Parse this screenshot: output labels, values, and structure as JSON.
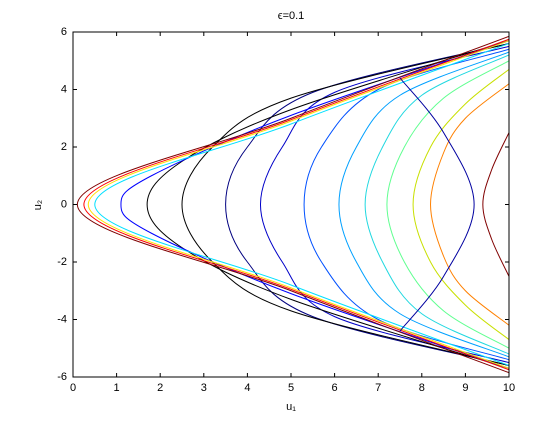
{
  "chart_data": {
    "type": "contour",
    "title": "ϵ=0.1",
    "xlabel": "u₁",
    "ylabel": "u₂",
    "xlim": [
      0,
      10
    ],
    "ylim": [
      -6,
      6
    ],
    "xticks": [
      0,
      1,
      2,
      3,
      4,
      5,
      6,
      7,
      8,
      9,
      10
    ],
    "yticks": [
      -6,
      -4,
      -2,
      0,
      2,
      4,
      6
    ],
    "series": [
      {
        "color": "#800000",
        "x": [
          10,
          9.6,
          9.4,
          9.6,
          10
        ],
        "y": [
          2.5,
          1.2,
          0,
          -1.2,
          -2.5
        ]
      },
      {
        "color": "#ff8000",
        "x": [
          10,
          9,
          8.5,
          8.2,
          8.5,
          9,
          10
        ],
        "y": [
          4.2,
          3,
          1.8,
          0,
          -1.8,
          -3,
          -4.2
        ]
      },
      {
        "color": "#c8e000",
        "x": [
          10,
          9,
          8.2,
          7.8,
          8.2,
          9,
          10
        ],
        "y": [
          4.7,
          3.5,
          2,
          0,
          -2,
          -3.5,
          -4.7
        ]
      },
      {
        "color": "#60ff90",
        "x": [
          10,
          8.5,
          7.6,
          7.2,
          7.6,
          8.5,
          10
        ],
        "y": [
          5,
          3.7,
          2,
          0,
          -2,
          -3.7,
          -5
        ]
      },
      {
        "color": "#20d8e0",
        "x": [
          10,
          8,
          7.1,
          6.7,
          7.1,
          8,
          10
        ],
        "y": [
          5.2,
          3.8,
          2,
          0,
          -2,
          -3.8,
          -5.2
        ]
      },
      {
        "color": "#00a0ff",
        "x": [
          10,
          7.5,
          6.5,
          6.1,
          6.5,
          7.5,
          10
        ],
        "y": [
          5.3,
          3.8,
          2,
          0,
          -2,
          -3.8,
          -5.3
        ]
      },
      {
        "color": "#0050ff",
        "x": [
          10,
          7,
          5.7,
          5.3,
          5.7,
          7,
          10
        ],
        "y": [
          5.4,
          4,
          2,
          0,
          -2,
          -4,
          -5.4
        ]
      },
      {
        "color": "#0000c8",
        "x": [
          10,
          6,
          4.8,
          4.3,
          4.8,
          6,
          10
        ],
        "y": [
          5.5,
          3.9,
          2,
          0,
          -2,
          -3.9,
          -5.5
        ]
      },
      {
        "color": "#000080",
        "x": [
          10,
          5.5,
          4,
          3.5,
          4,
          5.5,
          10
        ],
        "y": [
          5.6,
          3.9,
          2,
          0,
          -2,
          -3.9,
          -5.6
        ]
      },
      {
        "color": "#000000",
        "x": [
          10,
          5,
          3.2,
          2.5,
          3.2,
          5,
          10
        ],
        "y": [
          5.6,
          3.7,
          2,
          0,
          -2,
          -3.7,
          -5.6
        ]
      },
      {
        "color": "#000000",
        "x": [
          10,
          5,
          2.5,
          1.7,
          2.5,
          5,
          10
        ],
        "y": [
          5.7,
          3.3,
          1.5,
          0,
          -1.5,
          -3.3,
          -5.7
        ]
      },
      {
        "color": "#0000ff",
        "x": [
          10,
          5,
          1.8,
          1.1,
          1.8,
          5,
          10
        ],
        "y": [
          5.7,
          3.1,
          1,
          0,
          -1,
          -3.1,
          -5.7
        ]
      },
      {
        "color": "#00e0ff",
        "x": [
          10,
          5,
          0.5,
          5,
          10
        ],
        "y": [
          5.6,
          2.8,
          0,
          -2.8,
          -5.6
        ]
      },
      {
        "color": "#ffe000",
        "x": [
          10,
          5,
          0.35,
          5,
          10
        ],
        "y": [
          5.7,
          2.9,
          0,
          -2.9,
          -5.7
        ]
      },
      {
        "color": "#ff0000",
        "x": [
          10,
          5,
          0.25,
          5,
          10
        ],
        "y": [
          5.75,
          2.95,
          0,
          -2.95,
          -5.75
        ]
      },
      {
        "color": "#800000",
        "x": [
          10,
          5,
          0.1,
          5,
          10
        ],
        "y": [
          5.85,
          3,
          0,
          -3,
          -5.85
        ]
      },
      {
        "color": "#0000a0",
        "x": [
          7.5,
          8.5,
          9.2,
          8.5,
          7.5
        ],
        "y": [
          4.4,
          2.5,
          0,
          -2.5,
          -4.4
        ]
      }
    ]
  }
}
